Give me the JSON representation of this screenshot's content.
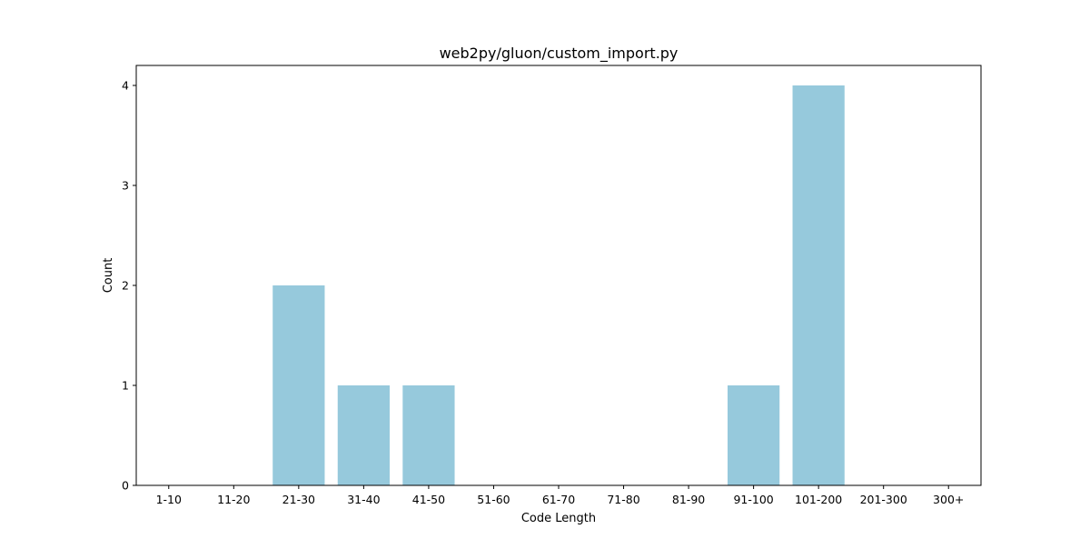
{
  "chart_data": {
    "type": "bar",
    "title": "web2py/gluon/custom_import.py",
    "xlabel": "Code Length",
    "ylabel": "Count",
    "categories": [
      "1-10",
      "11-20",
      "21-30",
      "31-40",
      "41-50",
      "51-60",
      "61-70",
      "71-80",
      "81-90",
      "91-100",
      "101-200",
      "201-300",
      "300+"
    ],
    "values": [
      0,
      0,
      2,
      1,
      1,
      0,
      0,
      0,
      0,
      1,
      4,
      0,
      0
    ],
    "ylim": [
      0,
      4.2
    ],
    "yticks": [
      0,
      1,
      2,
      3,
      4
    ],
    "grid": false,
    "legend": "none",
    "colors": {
      "bar": "#96c9dc",
      "axes": "#000000",
      "background": "#ffffff"
    }
  }
}
